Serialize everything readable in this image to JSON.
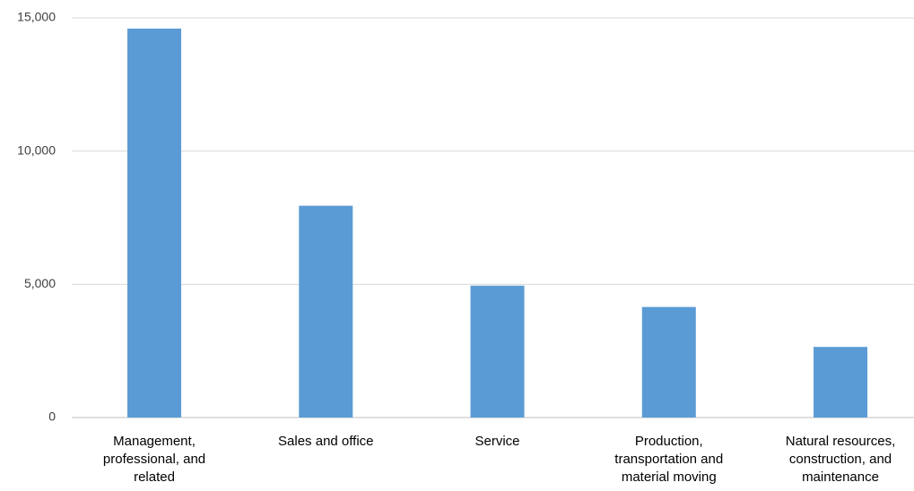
{
  "chart_data": {
    "type": "bar",
    "categories": [
      "Management, professional, and related",
      "Sales and office",
      "Service",
      "Production, transportation and material moving",
      "Natural resources, construction, and maintenance"
    ],
    "values": [
      14600,
      7950,
      4950,
      4150,
      2650
    ],
    "color": "#5b9bd5",
    "ylim": [
      0,
      15000
    ],
    "yticks": [
      0,
      {
        "value": 5000,
        "label": "5,000"
      },
      {
        "value": 10000,
        "label": "10,000"
      },
      {
        "value": 15000,
        "label": "15,000"
      }
    ],
    "grid": true
  }
}
